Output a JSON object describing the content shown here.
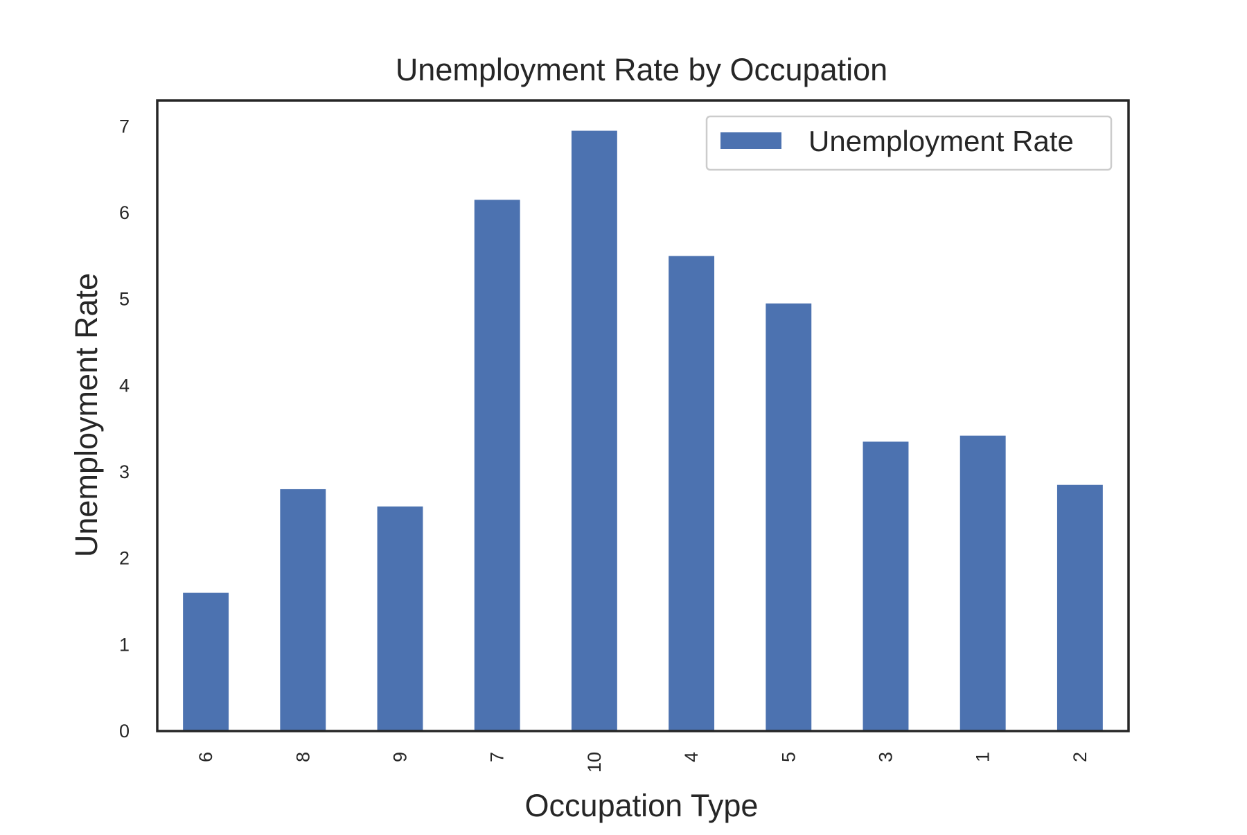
{
  "chart_data": {
    "type": "bar",
    "title": "Unemployment Rate by Occupation",
    "xlabel": "Occupation Type",
    "ylabel": "Unemployment Rate",
    "categories": [
      "6",
      "8",
      "9",
      "7",
      "10",
      "4",
      "5",
      "3",
      "1",
      "2"
    ],
    "series": [
      {
        "name": "Unemployment Rate",
        "color": "#4C72B0",
        "values": [
          1.6,
          2.8,
          2.6,
          6.15,
          6.95,
          5.5,
          4.95,
          3.35,
          3.42,
          2.85
        ]
      }
    ],
    "ylim": [
      0,
      7.3
    ],
    "yticks": [
      "0",
      "1",
      "2",
      "3",
      "4",
      "5",
      "6",
      "7"
    ],
    "grid": false,
    "legend_position": "top-right",
    "x_tick_rotation": "vertical"
  }
}
